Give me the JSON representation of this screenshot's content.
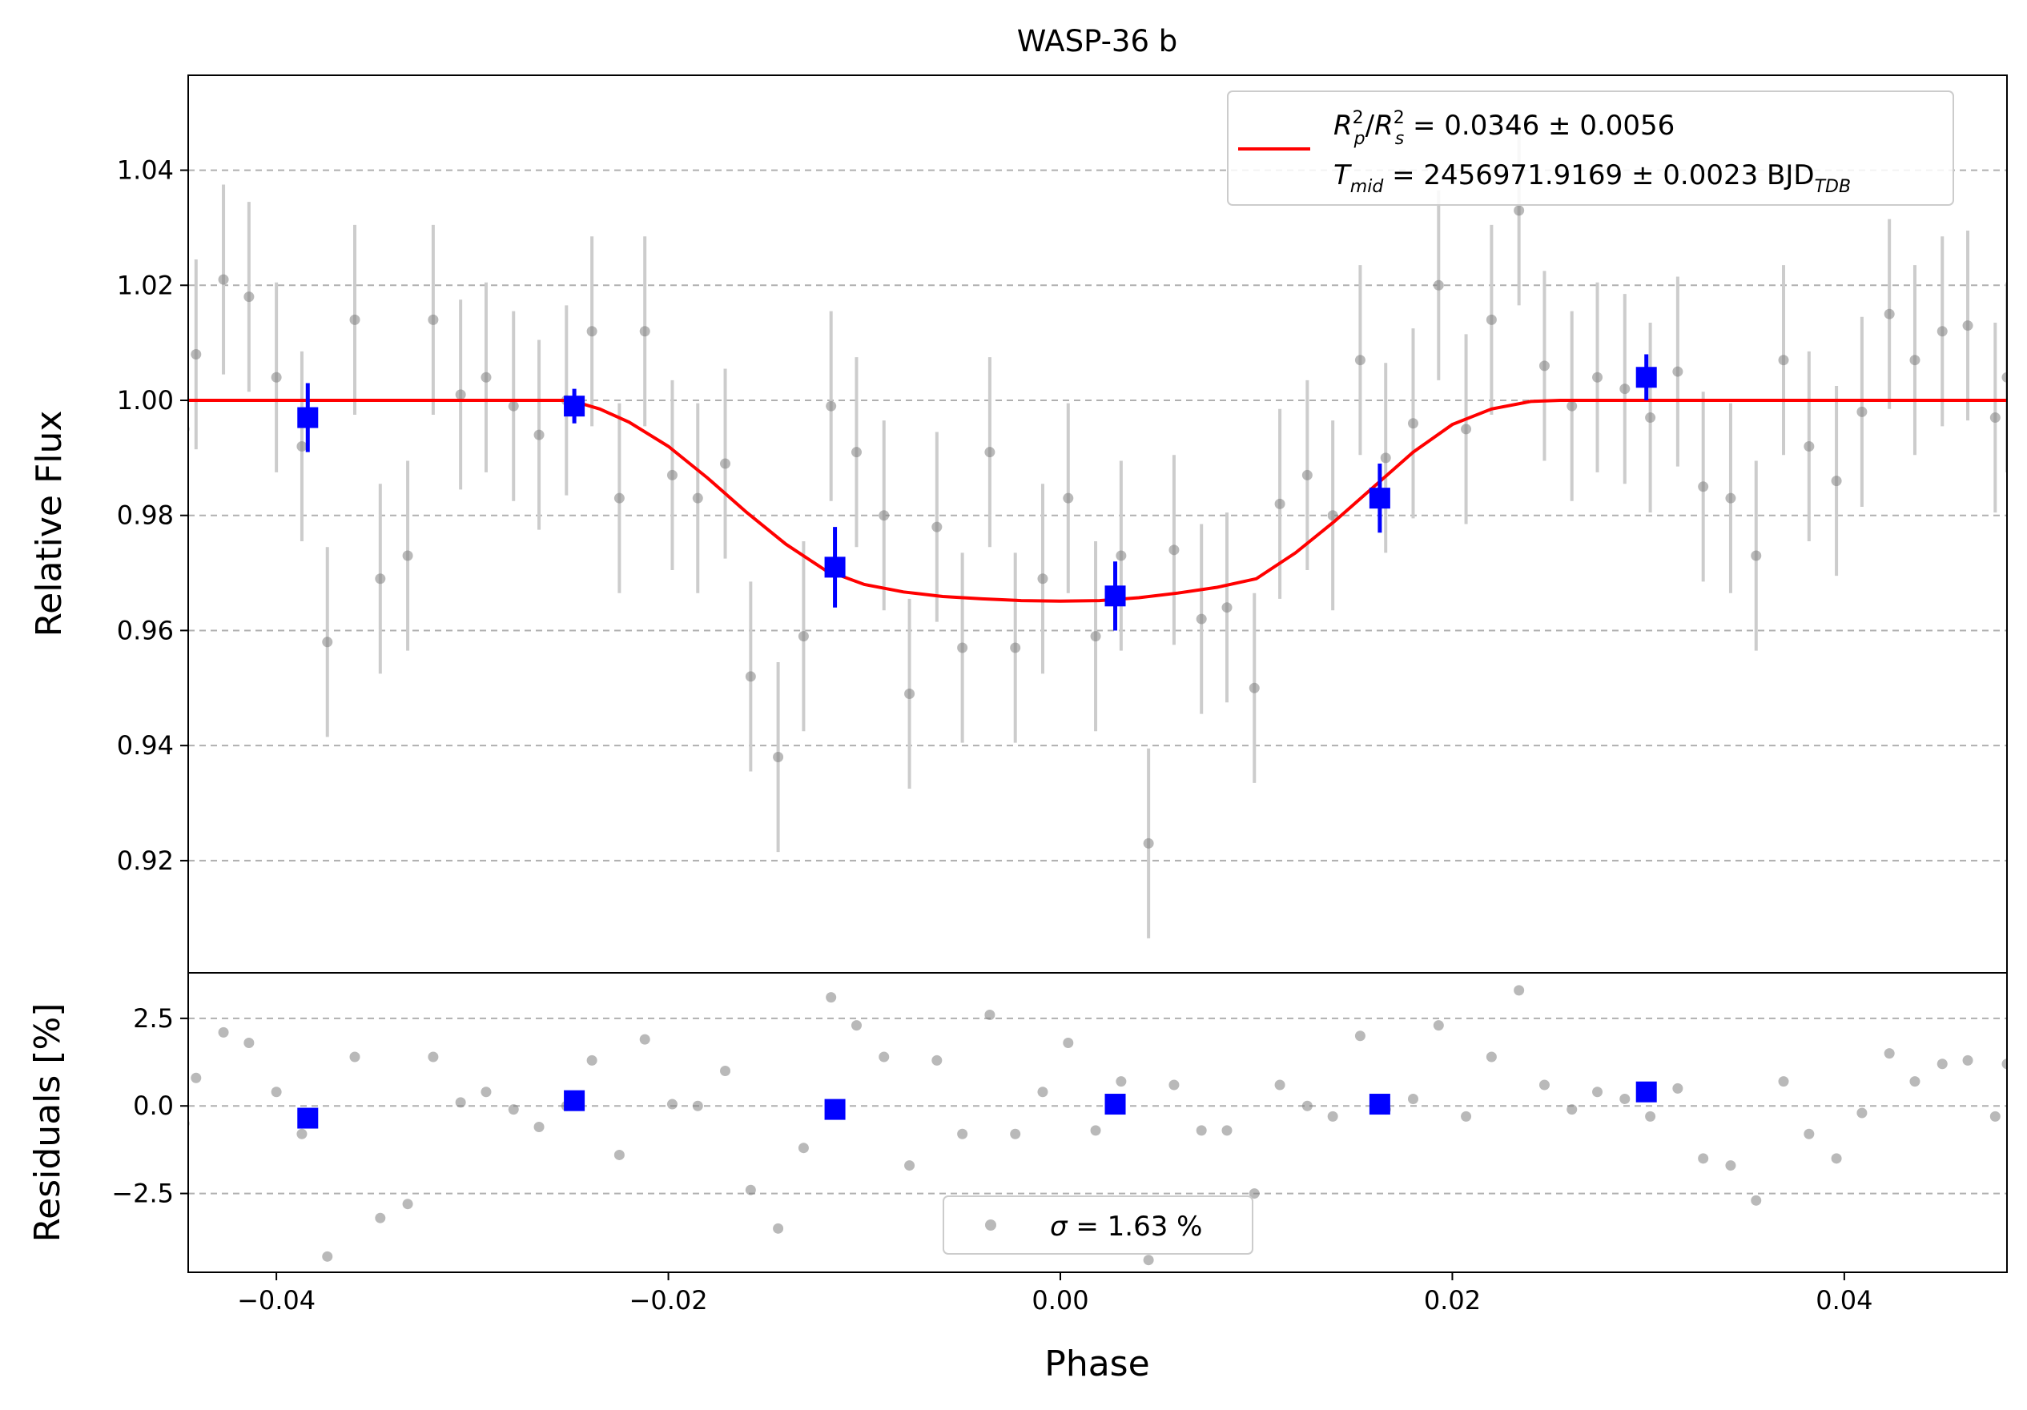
{
  "title": "WASP-36 b",
  "colors": {
    "model": "#ff0000",
    "binned": "#0000ff",
    "raw": "#808080",
    "rawErr": "#cccccc",
    "grid": "#b0b0b0",
    "frame": "#000000"
  },
  "legend_main": {
    "line1": {
      "R": "R",
      "p": "p",
      "sup2": "2",
      "slash": "/",
      "s": "s",
      "value": " = 0.0346 ± 0.0056"
    },
    "line2": {
      "T": "T",
      "mid": "mid",
      "value": " = 2456971.9169 ± 0.0023 BJD",
      "tdb": "TDB"
    }
  },
  "legend_resid": {
    "sigma": "σ",
    "value": " = 1.63 %"
  },
  "chart_data": [
    {
      "type": "scatter",
      "title": "WASP-36 b",
      "ylabel": "Relative Flux",
      "xlim": [
        -0.0445,
        0.0483
      ],
      "ylim": [
        0.9005,
        1.0565
      ],
      "grid": "horizontal dashed",
      "yticks": [
        {
          "value": 0.92,
          "label": "0.92"
        },
        {
          "value": 0.94,
          "label": "0.94"
        },
        {
          "value": 0.96,
          "label": "0.96"
        },
        {
          "value": 0.98,
          "label": "0.98"
        },
        {
          "value": 1.0,
          "label": "1.00"
        },
        {
          "value": 1.02,
          "label": "1.02"
        },
        {
          "value": 1.04,
          "label": "1.04"
        }
      ],
      "legend_position": "upper right",
      "model": {
        "name": "R_p^2/R_s^2 = 0.0346 ± 0.0056; T_mid = 2456971.9169 ± 0.0023 BJD_TDB",
        "x": [
          -0.0445,
          -0.025,
          -0.0235,
          -0.022,
          -0.02,
          -0.018,
          -0.016,
          -0.014,
          -0.012,
          -0.01,
          -0.008,
          -0.006,
          -0.004,
          -0.002,
          0.0,
          0.002,
          0.004,
          0.006,
          0.008,
          0.01,
          0.012,
          0.014,
          0.016,
          0.018,
          0.02,
          0.022,
          0.024,
          0.0255,
          0.0483
        ],
        "y": [
          1.0,
          1.0,
          0.9985,
          0.9962,
          0.992,
          0.9865,
          0.9805,
          0.975,
          0.9705,
          0.968,
          0.9667,
          0.9659,
          0.9655,
          0.9652,
          0.9651,
          0.9652,
          0.9657,
          0.9665,
          0.9675,
          0.969,
          0.9735,
          0.979,
          0.985,
          0.991,
          0.9958,
          0.9985,
          0.9998,
          1.0,
          1.0
        ]
      },
      "raw": {
        "name": "",
        "err": 0.0165,
        "x": [
          -0.0447,
          -0.0441,
          -0.0427,
          -0.0414,
          -0.04,
          -0.0387,
          -0.0374,
          -0.036,
          -0.0347,
          -0.0333,
          -0.032,
          -0.0306,
          -0.0293,
          -0.0279,
          -0.0266,
          -0.0252,
          -0.0239,
          -0.0225,
          -0.0212,
          -0.0198,
          -0.0185,
          -0.0171,
          -0.0158,
          -0.0144,
          -0.0131,
          -0.0117,
          -0.0104,
          -0.009,
          -0.0077,
          -0.0063,
          -0.005,
          -0.0036,
          -0.0023,
          -0.0009,
          0.0004,
          0.0018,
          0.0031,
          0.0045,
          0.0058,
          0.0072,
          0.0085,
          0.0099,
          0.0112,
          0.0126,
          0.0139,
          0.0153,
          0.0166,
          0.018,
          0.0193,
          0.0207,
          0.022,
          0.0234,
          0.0247,
          0.0261,
          0.0274,
          0.0288,
          0.0301,
          0.0315,
          0.0328,
          0.0342,
          0.0355,
          0.0369,
          0.0382,
          0.0396,
          0.0409,
          0.0423,
          0.0436,
          0.045,
          0.0463,
          0.0477,
          0.0483
        ],
        "y": [
          0.995,
          1.008,
          1.021,
          1.018,
          1.004,
          0.992,
          0.958,
          1.014,
          0.969,
          0.973,
          1.014,
          1.001,
          1.004,
          0.999,
          0.994,
          1.0,
          1.012,
          0.983,
          1.012,
          0.987,
          0.983,
          0.989,
          0.952,
          0.938,
          0.959,
          0.999,
          0.991,
          0.98,
          0.949,
          0.978,
          0.957,
          0.991,
          0.957,
          0.969,
          0.983,
          0.959,
          0.973,
          0.923,
          0.974,
          0.962,
          0.964,
          0.95,
          0.982,
          0.987,
          0.98,
          1.007,
          0.99,
          0.996,
          1.02,
          0.995,
          1.014,
          1.033,
          1.006,
          0.999,
          1.004,
          1.002,
          0.997,
          1.005,
          0.985,
          0.983,
          0.973,
          1.007,
          0.992,
          0.986,
          0.998,
          1.015,
          1.007,
          1.012,
          1.013,
          0.997,
          1.004
        ]
      },
      "binned": {
        "name": "",
        "x": [
          -0.0384,
          -0.0248,
          -0.0115,
          0.0028,
          0.0163,
          0.0299
        ],
        "y": [
          0.997,
          0.999,
          0.971,
          0.966,
          0.983,
          1.004
        ],
        "err": [
          0.006,
          0.003,
          0.007,
          0.006,
          0.006,
          0.004
        ]
      }
    },
    {
      "type": "scatter",
      "xlabel": "Phase",
      "ylabel": "Residuals [%]",
      "xlim": [
        -0.0445,
        0.0483
      ],
      "ylim": [
        -4.75,
        3.8
      ],
      "grid": "horizontal dashed",
      "xticks": [
        {
          "value": -0.04,
          "label": "−0.04"
        },
        {
          "value": -0.02,
          "label": "−0.02"
        },
        {
          "value": 0.0,
          "label": "0.00"
        },
        {
          "value": 0.02,
          "label": "0.02"
        },
        {
          "value": 0.04,
          "label": "0.04"
        }
      ],
      "yticks": [
        {
          "value": -2.5,
          "label": "−2.5"
        },
        {
          "value": 0.0,
          "label": "0.0"
        },
        {
          "value": 2.5,
          "label": "2.5"
        }
      ],
      "legend_position": "lower center",
      "raw": {
        "name": "σ = 1.63 %",
        "x": [
          -0.0447,
          -0.0441,
          -0.0427,
          -0.0414,
          -0.04,
          -0.0387,
          -0.0374,
          -0.036,
          -0.0347,
          -0.0333,
          -0.032,
          -0.0306,
          -0.0293,
          -0.0279,
          -0.0266,
          -0.0252,
          -0.0239,
          -0.0225,
          -0.0212,
          -0.0198,
          -0.0185,
          -0.0171,
          -0.0158,
          -0.0144,
          -0.0131,
          -0.0117,
          -0.0104,
          -0.009,
          -0.0077,
          -0.0063,
          -0.005,
          -0.0036,
          -0.0023,
          -0.0009,
          0.0004,
          0.0018,
          0.0031,
          0.0045,
          0.0058,
          0.0072,
          0.0085,
          0.0099,
          0.0112,
          0.0126,
          0.0139,
          0.0153,
          0.0166,
          0.018,
          0.0193,
          0.0207,
          0.022,
          0.0234,
          0.0247,
          0.0261,
          0.0274,
          0.0288,
          0.0301,
          0.0315,
          0.0328,
          0.0342,
          0.0355,
          0.0369,
          0.0382,
          0.0396,
          0.0409,
          0.0423,
          0.0436,
          0.045,
          0.0463,
          0.0477,
          0.0483
        ],
        "y": [
          -0.5,
          0.8,
          2.1,
          1.8,
          0.4,
          -0.8,
          -4.3,
          1.4,
          -3.2,
          -2.8,
          1.4,
          0.1,
          0.4,
          -0.1,
          -0.6,
          0.0,
          1.3,
          -1.4,
          1.9,
          0.05,
          0.0,
          1.0,
          -2.4,
          -3.5,
          -1.2,
          3.1,
          2.3,
          1.4,
          -1.7,
          1.3,
          -0.8,
          2.6,
          -0.8,
          0.4,
          1.8,
          -0.7,
          0.7,
          -4.4,
          0.6,
          -0.7,
          -0.7,
          -2.5,
          0.6,
          0.0,
          -0.3,
          2.0,
          -0.1,
          0.2,
          2.3,
          -0.3,
          1.4,
          3.3,
          0.6,
          -0.1,
          0.4,
          0.2,
          -0.3,
          0.5,
          -1.5,
          -1.7,
          -2.7,
          0.7,
          -0.8,
          -1.5,
          -0.2,
          1.5,
          0.7,
          1.2,
          1.3,
          -0.3,
          1.2
        ]
      },
      "binned": {
        "name": "",
        "x": [
          -0.0384,
          -0.0248,
          -0.0115,
          0.0028,
          0.0163,
          0.0299
        ],
        "y": [
          -0.35,
          0.15,
          -0.1,
          0.05,
          0.05,
          0.4
        ]
      }
    }
  ]
}
